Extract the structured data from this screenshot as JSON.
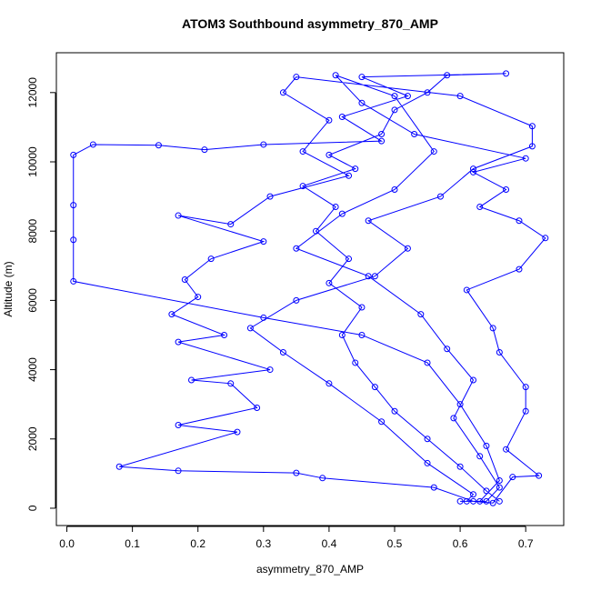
{
  "chart_data": {
    "type": "line",
    "title": "ATOM3 Southbound asymmetry_870_AMP",
    "xlabel": "asymmetry_870_AMP",
    "ylabel": "Altitude (m)",
    "color": "#0000ff",
    "markers": true,
    "xlim": [
      -0.016,
      0.758
    ],
    "ylim": [
      -500,
      13150
    ],
    "xticks": [
      {
        "value": 0,
        "label": "0.0"
      },
      0.1,
      0.2,
      0.3,
      0.4,
      0.5,
      0.6,
      0.7
    ],
    "yticks": [
      0,
      2000,
      4000,
      6000,
      8000,
      10000,
      12000
    ],
    "x": [
      0.66,
      0.64,
      0.6,
      0.55,
      0.5,
      0.47,
      0.44,
      0.42,
      0.45,
      0.4,
      0.43,
      0.38,
      0.41,
      0.36,
      0.44,
      0.4,
      0.48,
      0.5,
      0.55,
      0.58,
      0.67,
      0.45,
      0.52,
      0.42,
      0.48,
      0.3,
      0.21,
      0.14,
      0.04,
      0.01,
      0.01,
      0.01,
      0.01,
      0.3,
      0.45,
      0.55,
      0.6,
      0.64,
      0.66,
      0.63,
      0.61,
      0.62,
      0.55,
      0.48,
      0.4,
      0.33,
      0.28,
      0.35,
      0.47,
      0.52,
      0.46,
      0.57,
      0.62,
      0.71,
      0.71,
      0.6,
      0.35,
      0.33,
      0.4,
      0.36,
      0.43,
      0.31,
      0.25,
      0.17,
      0.3,
      0.22,
      0.18,
      0.2,
      0.16,
      0.24,
      0.17,
      0.31,
      0.19,
      0.25,
      0.29,
      0.17,
      0.26,
      0.08,
      0.17,
      0.35,
      0.39,
      0.56,
      0.62,
      0.65,
      0.68,
      0.72,
      0.67,
      0.7,
      0.7,
      0.66,
      0.65,
      0.61,
      0.69,
      0.73,
      0.69,
      0.63,
      0.67,
      0.62,
      0.7,
      0.53,
      0.45,
      0.41,
      0.5,
      0.56,
      0.5,
      0.42,
      0.35,
      0.46,
      0.54,
      0.58,
      0.62,
      0.59,
      0.63,
      0.66,
      0.64,
      0.6
    ],
    "values": [
      200,
      500,
      1200,
      2000,
      2800,
      3500,
      4200,
      5000,
      5800,
      6500,
      7200,
      8000,
      8700,
      9300,
      9800,
      10200,
      10800,
      11500,
      12000,
      12500,
      12550,
      12450,
      11900,
      11300,
      10600,
      10500,
      10350,
      10480,
      10500,
      10200,
      8750,
      7750,
      6550,
      5500,
      5000,
      4200,
      3000,
      1800,
      800,
      200,
      200,
      400,
      1300,
      2500,
      3600,
      4500,
      5200,
      6000,
      6700,
      7500,
      8300,
      9000,
      9800,
      10450,
      11030,
      11900,
      12450,
      12000,
      11200,
      10300,
      9600,
      9000,
      8200,
      8450,
      7700,
      7200,
      6600,
      6100,
      5600,
      5000,
      4800,
      4000,
      3700,
      3600,
      2900,
      2400,
      2200,
      1200,
      1080,
      1020,
      870,
      600,
      200,
      150,
      900,
      940,
      1700,
      2800,
      3500,
      4500,
      5200,
      6300,
      6900,
      7800,
      8300,
      8700,
      9200,
      9700,
      10100,
      10800,
      11700,
      12500,
      11900,
      10300,
      9200,
      8500,
      7500,
      6700,
      5600,
      4600,
      3700,
      2600,
      1500,
      600,
      200,
      200
    ]
  }
}
